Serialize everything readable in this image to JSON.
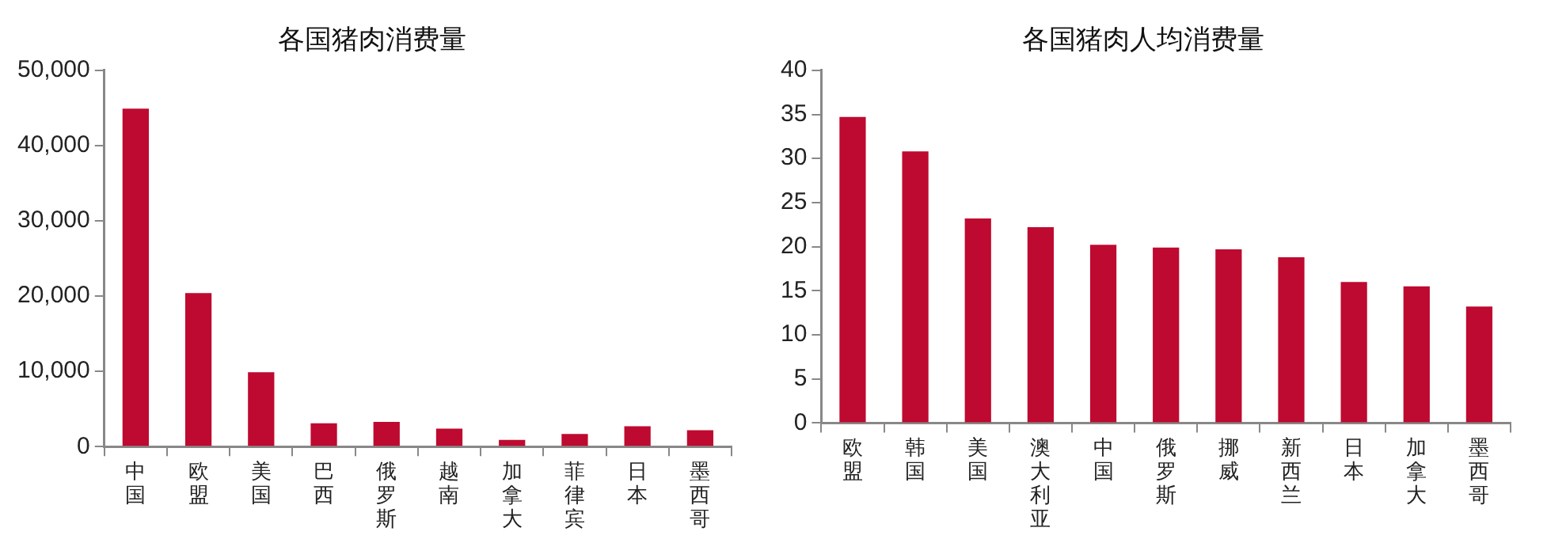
{
  "chart_data": [
    {
      "type": "bar",
      "title": "各国猪肉消费量",
      "categories": [
        "中国",
        "欧盟",
        "美国",
        "巴西",
        "俄罗斯",
        "越南",
        "加拿大",
        "菲律宾",
        "日本",
        "墨西哥"
      ],
      "values": [
        44900,
        20400,
        9900,
        3100,
        3300,
        2400,
        900,
        1700,
        2700,
        2200
      ],
      "color": "#be0a30",
      "ylim": [
        0,
        50000
      ],
      "yticks": [
        {
          "value": 0,
          "label": "0"
        },
        {
          "value": 10000,
          "label": "10,000"
        },
        {
          "value": 20000,
          "label": "20,000"
        },
        {
          "value": 30000,
          "label": "30,000"
        },
        {
          "value": 40000,
          "label": "40,000"
        },
        {
          "value": 50000,
          "label": "50,000"
        }
      ],
      "grid": false,
      "legend": false
    },
    {
      "type": "bar",
      "title": "各国猪肉人均消费量",
      "categories": [
        "欧盟",
        "韩国",
        "美国",
        "澳大利亚",
        "中国",
        "俄罗斯",
        "挪威",
        "新西兰",
        "日本",
        "加拿大",
        "墨西哥"
      ],
      "values": [
        34.7,
        30.8,
        23.2,
        22.2,
        20.2,
        19.9,
        19.7,
        18.8,
        16.0,
        15.5,
        13.2
      ],
      "color": "#be0a30",
      "ylim": [
        0,
        40
      ],
      "yticks": [
        0,
        5,
        10,
        15,
        20,
        25,
        30,
        35,
        40
      ],
      "grid": false,
      "legend": false
    }
  ]
}
